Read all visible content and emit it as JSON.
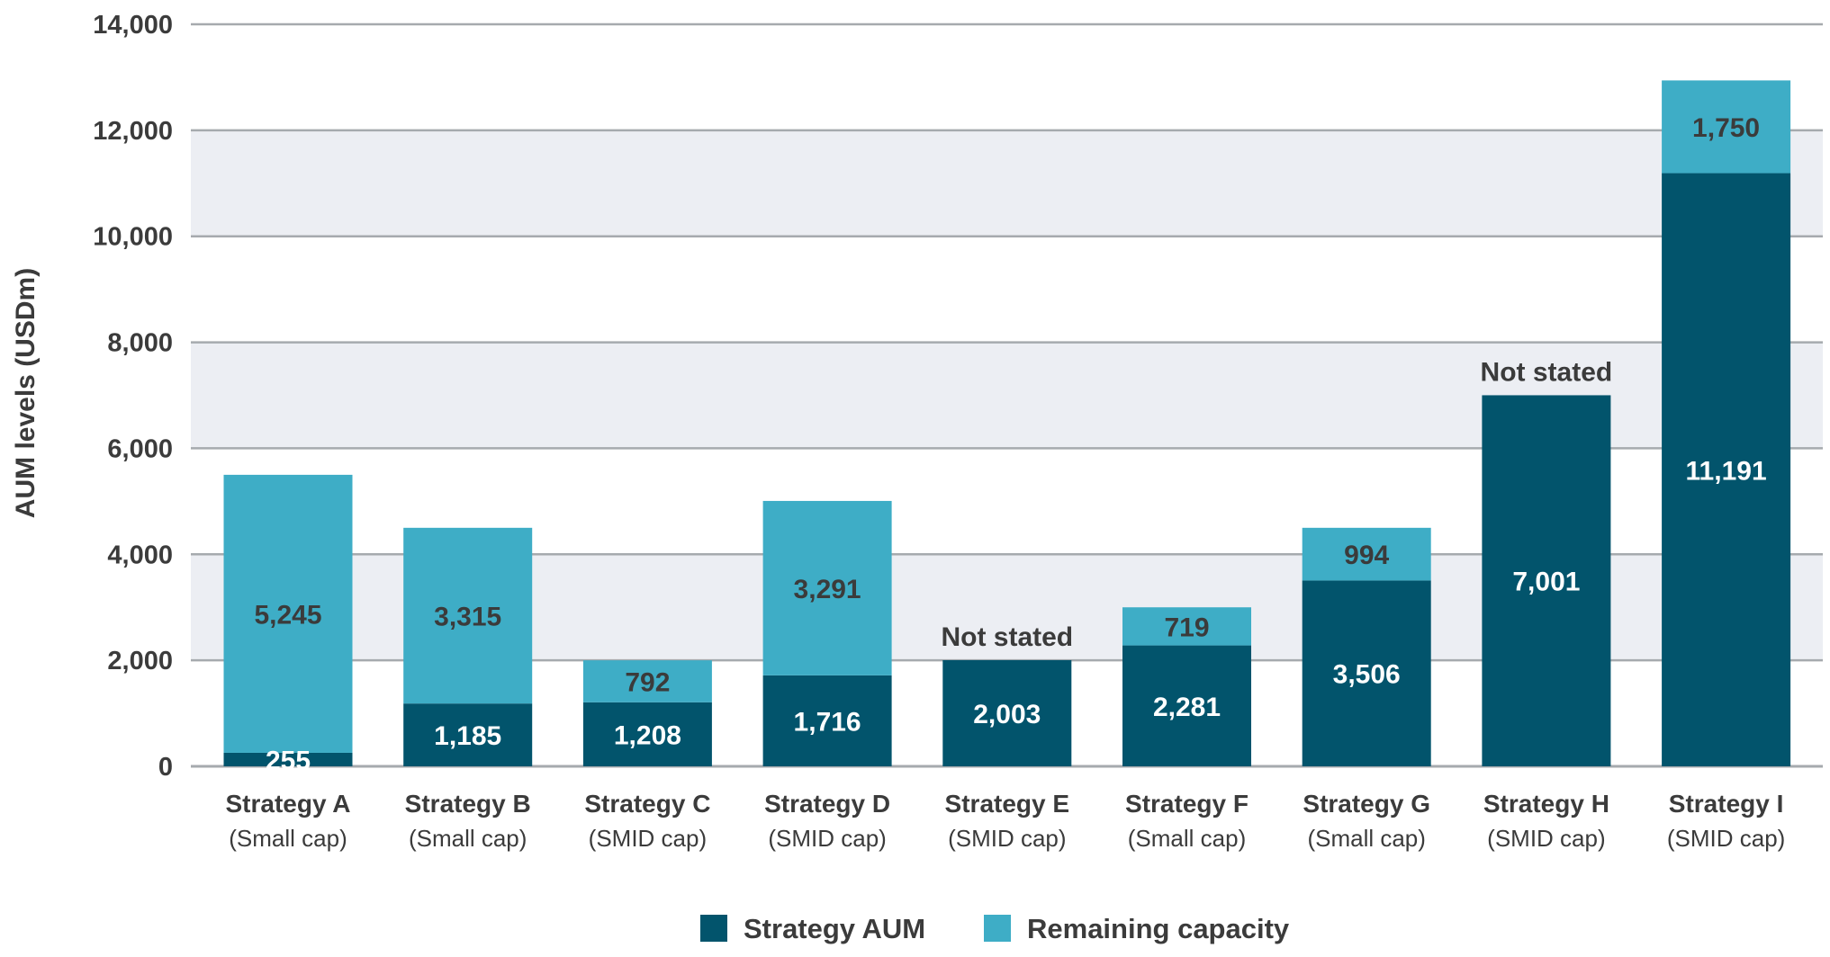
{
  "chart_data": {
    "type": "bar",
    "stacked": true,
    "ylabel": "AUM levels (USDm)",
    "ylim": [
      0,
      14000
    ],
    "y_ticks": [
      "0",
      "2,000",
      "4,000",
      "6,000",
      "8,000",
      "10,000",
      "12,000",
      "14,000"
    ],
    "grid": true,
    "legend_position": "bottom-center",
    "categories": [
      "Strategy A",
      "Strategy B",
      "Strategy C",
      "Strategy D",
      "Strategy E",
      "Strategy F",
      "Strategy G",
      "Strategy H",
      "Strategy I"
    ],
    "category_subtitles": [
      "(Small cap)",
      "(Small cap)",
      "(SMID cap)",
      "(SMID cap)",
      "(SMID cap)",
      "(Small cap)",
      "(Small cap)",
      "(SMID cap)",
      "(SMID cap)"
    ],
    "series": [
      {
        "name": "Strategy AUM",
        "color": "#02546c",
        "values": [
          255,
          1185,
          1208,
          1716,
          2003,
          2281,
          3506,
          7001,
          11191
        ],
        "labels": [
          "255",
          "1,185",
          "1,208",
          "1,716",
          "2,003",
          "2,281",
          "3,506",
          "7,001",
          "11,191"
        ]
      },
      {
        "name": "Remaining capacity",
        "color": "#3eadc6",
        "values": [
          5245,
          3315,
          792,
          3291,
          null,
          719,
          994,
          null,
          1750
        ],
        "labels": [
          "5,245",
          "3,315",
          "792",
          "3,291",
          "Not stated",
          "719",
          "994",
          "Not stated",
          "1,750"
        ]
      }
    ]
  },
  "colors": {
    "band": "#eceef3",
    "grid": "#a6aaae",
    "text": "#3b3b3b"
  }
}
